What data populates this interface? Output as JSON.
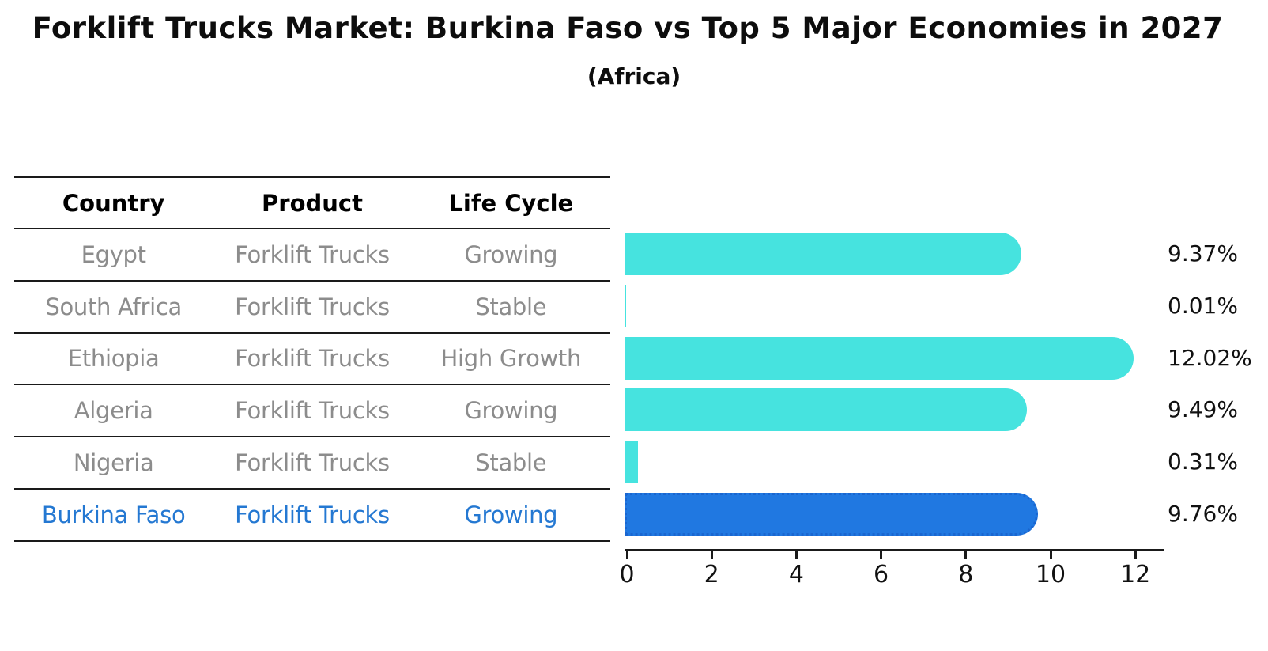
{
  "title": "Forklift Trucks Market: Burkina Faso vs Top 5 Major Economies in 2027",
  "subtitle": "(Africa)",
  "table": {
    "headers": [
      "Country",
      "Product",
      "Life Cycle"
    ],
    "rows": [
      {
        "country": "Egypt",
        "product": "Forklift Trucks",
        "life_cycle": "Growing",
        "highlighted": false
      },
      {
        "country": "South Africa",
        "product": "Forklift Trucks",
        "life_cycle": "Stable",
        "highlighted": false
      },
      {
        "country": "Ethiopia",
        "product": "Forklift Trucks",
        "life_cycle": "High Growth",
        "highlighted": false
      },
      {
        "country": "Algeria",
        "product": "Forklift Trucks",
        "life_cycle": "Growing",
        "highlighted": false
      },
      {
        "country": "Nigeria",
        "product": "Forklift Trucks",
        "life_cycle": "Stable",
        "highlighted": false
      },
      {
        "country": "Burkina Faso",
        "product": "Forklift Trucks",
        "life_cycle": "Growing",
        "highlighted": true
      }
    ]
  },
  "chart_data": {
    "type": "bar",
    "orientation": "horizontal",
    "title": "Forklift Trucks Market: Burkina Faso vs Top 5 Major Economies in 2027",
    "subtitle": "(Africa)",
    "categories": [
      "Egypt",
      "South Africa",
      "Ethiopia",
      "Algeria",
      "Nigeria",
      "Burkina Faso"
    ],
    "values": [
      9.37,
      0.01,
      12.02,
      9.49,
      0.31,
      9.76
    ],
    "value_labels": [
      "9.37%",
      "0.01%",
      "12.02%",
      "9.49%",
      "0.31%",
      "9.76%"
    ],
    "x_ticks": [
      0,
      2,
      4,
      6,
      8,
      10,
      12
    ],
    "xlim": [
      0,
      12.7
    ],
    "grid": false,
    "legend": "none",
    "highlight_index": 5,
    "colors": {
      "bar": "#46e3df",
      "highlight_bar": "#2078e1",
      "highlight_edge": "#1a66d0",
      "highlight_text": "#2478d2",
      "table_text": "#8c8c8c",
      "axis": "#1a1a1a"
    }
  }
}
